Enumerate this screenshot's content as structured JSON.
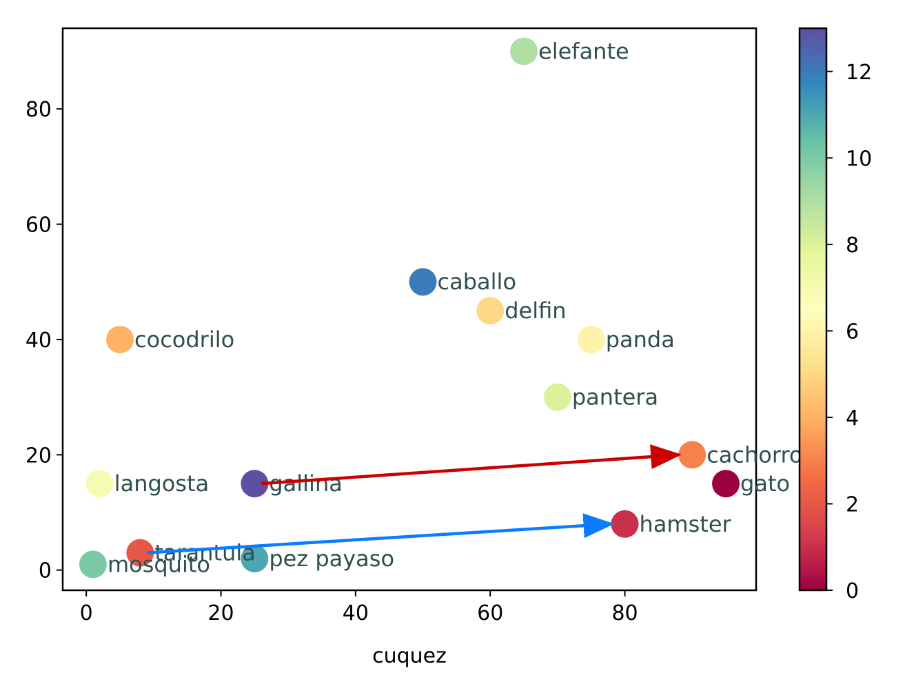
{
  "chart_data": {
    "type": "scatter",
    "title": "",
    "xlabel": "cuquez",
    "ylabel": "",
    "xlim": [
      -3.5,
      99.5
    ],
    "ylim": [
      -3.5,
      94
    ],
    "x_ticks": [
      0,
      20,
      40,
      60,
      80
    ],
    "y_ticks": [
      0,
      20,
      40,
      60,
      80
    ],
    "grid": false,
    "colormap": "Spectral",
    "colorbar": {
      "min": 0,
      "max": 13,
      "ticks": [
        0,
        2,
        4,
        6,
        8,
        10,
        12
      ]
    },
    "points": [
      {
        "label": "gato",
        "x": 95,
        "y": 15,
        "c": 0
      },
      {
        "label": "hamster",
        "x": 80,
        "y": 8,
        "c": 1
      },
      {
        "label": "tarantula",
        "x": 8,
        "y": 3,
        "c": 2
      },
      {
        "label": "cachorro",
        "x": 90,
        "y": 20,
        "c": 3
      },
      {
        "label": "cocodrilo",
        "x": 5,
        "y": 40,
        "c": 4
      },
      {
        "label": "delfin",
        "x": 60,
        "y": 45,
        "c": 5
      },
      {
        "label": "panda",
        "x": 75,
        "y": 40,
        "c": 6
      },
      {
        "label": "langosta",
        "x": 2,
        "y": 15,
        "c": 7
      },
      {
        "label": "pantera",
        "x": 70,
        "y": 30,
        "c": 8
      },
      {
        "label": "elefante",
        "x": 65,
        "y": 90,
        "c": 9
      },
      {
        "label": "mosquito",
        "x": 1,
        "y": 1,
        "c": 10
      },
      {
        "label": "pez payaso",
        "x": 25,
        "y": 2,
        "c": 11
      },
      {
        "label": "caballo",
        "x": 50,
        "y": 50,
        "c": 12
      },
      {
        "label": "gallina",
        "x": 25,
        "y": 15,
        "c": 13
      }
    ],
    "arrows": [
      {
        "from": [
          26,
          15
        ],
        "to": [
          88,
          20
        ],
        "color": "#cc0000"
      },
      {
        "from": [
          9,
          3
        ],
        "to": [
          78,
          8
        ],
        "color": "#0a7cff"
      }
    ]
  }
}
